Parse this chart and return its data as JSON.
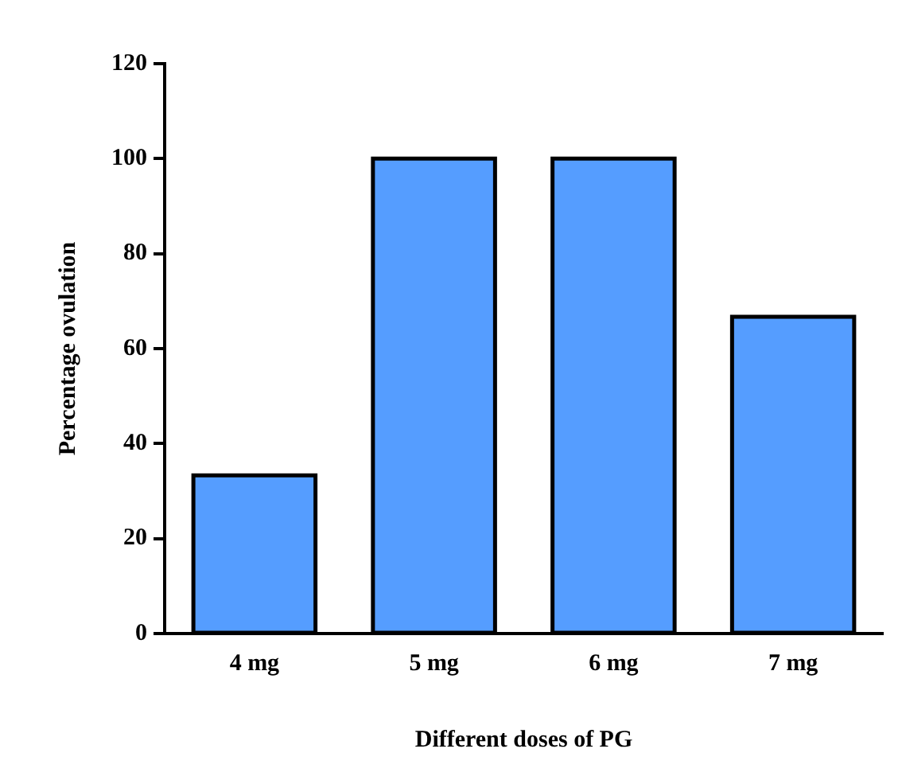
{
  "chart_data": {
    "type": "bar",
    "categories": [
      "4 mg",
      "5 mg",
      "6 mg",
      "7 mg"
    ],
    "values": [
      33.3,
      100,
      100,
      66.7
    ],
    "color": "#559dff",
    "xlabel": "Different doses of PG",
    "ylabel": "Percentage ovulation",
    "ylim": [
      0,
      120
    ],
    "yticks": [
      0,
      20,
      40,
      60,
      80,
      100,
      120
    ],
    "grid": false,
    "legend": false
  }
}
